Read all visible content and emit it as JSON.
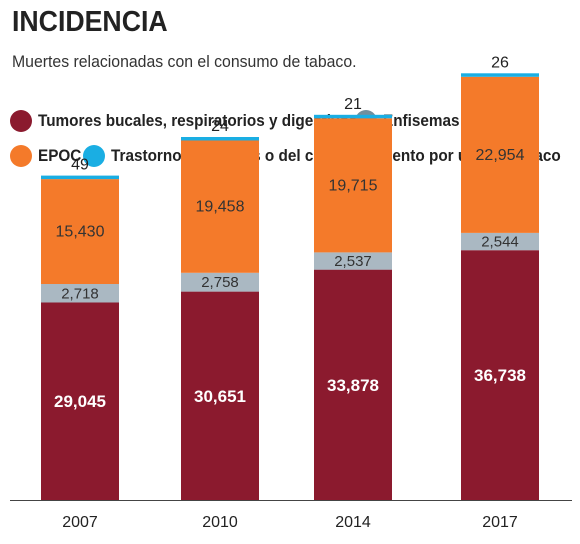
{
  "header": {
    "title": "INCIDENCIA",
    "subtitle": "Muertes relacionadas con el consumo de tabaco."
  },
  "legend": [
    {
      "label": "Tumores bucales, respiratorios y digestivos",
      "color": "#8b1a2e"
    },
    {
      "label": "Enfisemas",
      "color": "#6f8f9e"
    },
    {
      "label": "EPOC",
      "color": "#f47a2a"
    },
    {
      "label": "Trastornos mentales o del comportamiento por uso de tabaco",
      "color": "#1aaee3"
    }
  ],
  "chart_data": {
    "type": "bar",
    "stacked": true,
    "categories": [
      "2007",
      "2010",
      "2014",
      "2017"
    ],
    "series": [
      {
        "name": "Tumores bucales, respiratorios y digestivos",
        "color": "#8b1a2e",
        "values": [
          29045,
          30651,
          33878,
          36738
        ],
        "labels": [
          "29,045",
          "30,651",
          "33,878",
          "36,738"
        ]
      },
      {
        "name": "Enfisemas",
        "color": "#aab8c2",
        "values": [
          2718,
          2758,
          2537,
          2544
        ],
        "labels": [
          "2,718",
          "2,758",
          "2,537",
          "2,544"
        ]
      },
      {
        "name": "EPOC",
        "color": "#f47a2a",
        "values": [
          15430,
          19458,
          19715,
          22954
        ],
        "labels": [
          "15,430",
          "19,458",
          "19,715",
          "22,954"
        ]
      },
      {
        "name": "Trastornos mentales o del comportamiento por uso de tabaco",
        "color": "#1aaee3",
        "values": [
          49,
          24,
          21,
          26
        ],
        "labels": [
          "49",
          "24",
          "21",
          "26"
        ]
      }
    ],
    "ylim": [
      0,
      62500
    ],
    "grid": false
  }
}
